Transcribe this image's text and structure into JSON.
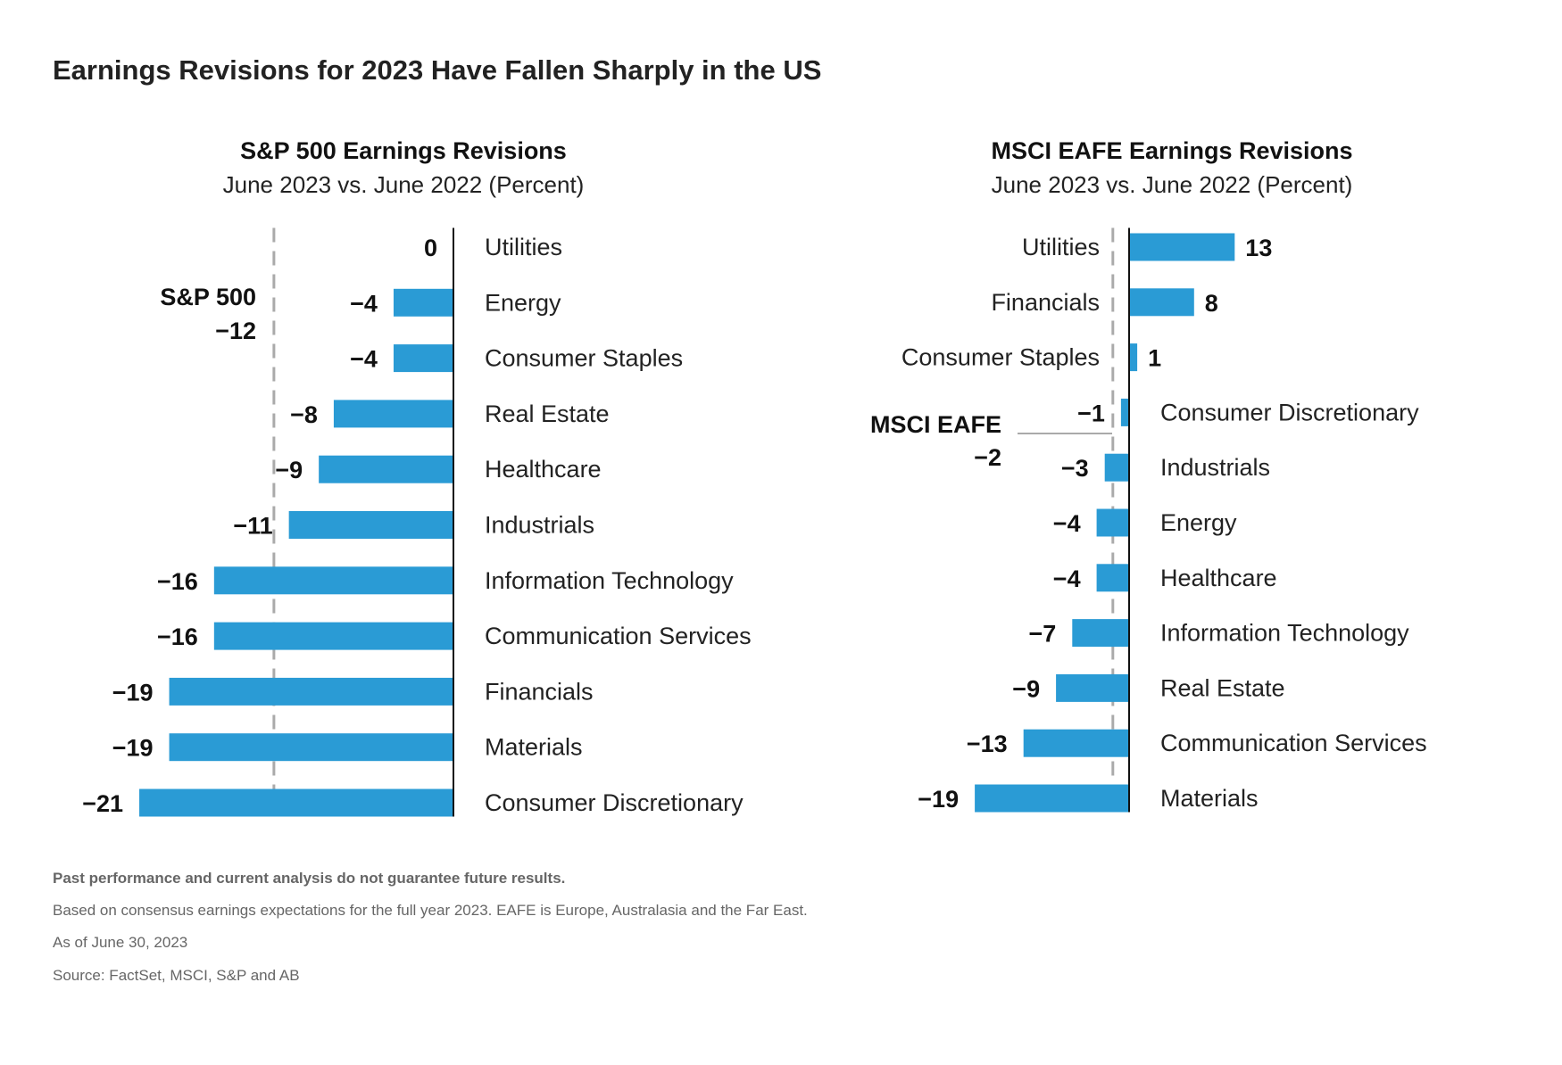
{
  "title": "Earnings Revisions for 2023 Have Fallen Sharply in the US",
  "colors": {
    "bar": "#2a9bd5",
    "axis": "#111111",
    "reference": "#aaaaaa"
  },
  "chart_data": [
    {
      "type": "bar",
      "orientation": "horizontal",
      "title": "S&P 500 Earnings Revisions",
      "subtitle": "June 2023 vs. June 2022 (Percent)",
      "categories": [
        "Utilities",
        "Energy",
        "Consumer Staples",
        "Real Estate",
        "Healthcare",
        "Industrials",
        "Information Technology",
        "Communication Services",
        "Financials",
        "Materials",
        "Consumer Discretionary"
      ],
      "values": [
        0,
        -4,
        -4,
        -8,
        -9,
        -11,
        -16,
        -16,
        -19,
        -19,
        -21
      ],
      "value_labels": [
        "0",
        "−4",
        "−4",
        "−8",
        "−9",
        "−11",
        "−16",
        "−16",
        "−19",
        "−19",
        "−21"
      ],
      "reference_line": {
        "name": "S&P 500",
        "value": -12,
        "label": "−12",
        "style": "dashed"
      },
      "xlim": [
        -21,
        0
      ],
      "xlabel": "",
      "ylabel": "",
      "grid": false
    },
    {
      "type": "bar",
      "orientation": "horizontal",
      "title": "MSCI EAFE Earnings Revisions",
      "subtitle": "June 2023 vs. June 2022 (Percent)",
      "categories": [
        "Utilities",
        "Financials",
        "Consumer Staples",
        "Consumer Discretionary",
        "Industrials",
        "Energy",
        "Healthcare",
        "Information Technology",
        "Real Estate",
        "Communication Services",
        "Materials"
      ],
      "values": [
        13,
        8,
        1,
        -1,
        -3,
        -4,
        -4,
        -7,
        -9,
        -13,
        -19
      ],
      "value_labels": [
        "13",
        "8",
        "1",
        "−1",
        "−3",
        "−4",
        "−4",
        "−7",
        "−9",
        "−13",
        "−19"
      ],
      "reference_line": {
        "name": "MSCI EAFE",
        "value": -2,
        "label": "−2",
        "style": "dashed"
      },
      "xlim": [
        -19,
        13
      ],
      "xlabel": "",
      "ylabel": "",
      "grid": false
    }
  ],
  "footnotes": {
    "disclaimer": "Past performance and current analysis do not guarantee future results.",
    "note": "Based on consensus earnings expectations for the full year 2023. EAFE is Europe, Australasia and the Far East.",
    "as_of": "As of June 30, 2023",
    "source": "Source: FactSet, MSCI, S&P and AB"
  }
}
